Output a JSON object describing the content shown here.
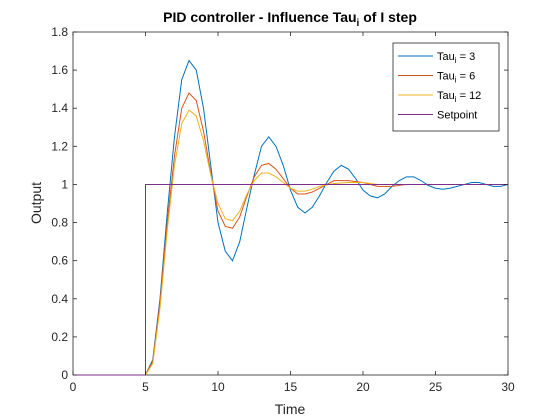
{
  "chart_data": {
    "type": "line",
    "title": "PID controller - Influence Tau",
    "title_subscript": "i",
    "title_suffix": " of I step",
    "xlabel": "Time",
    "ylabel": "Output",
    "xlim": [
      0,
      30
    ],
    "ylim": [
      0,
      1.8
    ],
    "xticks": [
      "0",
      "5",
      "10",
      "15",
      "20",
      "25",
      "30"
    ],
    "yticks": [
      "0",
      "0.2",
      "0.4",
      "0.6",
      "0.8",
      "1",
      "1.2",
      "1.4",
      "1.6",
      "1.8"
    ],
    "grid": false,
    "legend_position": "top-right",
    "series": [
      {
        "name_prefix": "Tau",
        "name_subscript": "i",
        "name_suffix": " = 3",
        "color": "#0072BD",
        "x": [
          0,
          5,
          5.5,
          6,
          6.5,
          7,
          7.5,
          8,
          8.5,
          9,
          9.5,
          10,
          10.5,
          11,
          11.5,
          12,
          12.5,
          13,
          13.5,
          14,
          14.5,
          15,
          15.5,
          16,
          16.5,
          17,
          17.5,
          18,
          18.5,
          19,
          19.5,
          20,
          20.5,
          21,
          21.5,
          22,
          22.5,
          23,
          23.5,
          24,
          24.5,
          25,
          25.5,
          26,
          26.5,
          27,
          27.5,
          28,
          28.5,
          29,
          29.5,
          30
        ],
        "y": [
          0,
          0,
          0.08,
          0.4,
          0.85,
          1.25,
          1.55,
          1.65,
          1.6,
          1.4,
          1.1,
          0.8,
          0.65,
          0.6,
          0.7,
          0.88,
          1.05,
          1.2,
          1.25,
          1.2,
          1.1,
          0.97,
          0.88,
          0.85,
          0.88,
          0.94,
          1.01,
          1.07,
          1.1,
          1.08,
          1.03,
          0.97,
          0.94,
          0.93,
          0.95,
          0.99,
          1.02,
          1.04,
          1.04,
          1.02,
          0.995,
          0.98,
          0.975,
          0.98,
          0.99,
          1.0,
          1.01,
          1.01,
          1.0,
          0.99,
          0.99,
          1.0
        ]
      },
      {
        "name_prefix": "Tau",
        "name_subscript": "i",
        "name_suffix": " = 6",
        "color": "#D95319",
        "x": [
          0,
          5,
          5.5,
          6,
          6.5,
          7,
          7.5,
          8,
          8.5,
          9,
          9.5,
          10,
          10.5,
          11,
          11.5,
          12,
          12.5,
          13,
          13.5,
          14,
          14.5,
          15,
          15.5,
          16,
          16.5,
          17,
          17.5,
          18,
          19,
          20,
          21,
          22,
          23,
          24,
          25,
          26,
          27,
          28,
          29,
          30
        ],
        "y": [
          0,
          0,
          0.07,
          0.38,
          0.8,
          1.15,
          1.4,
          1.48,
          1.44,
          1.28,
          1.06,
          0.86,
          0.78,
          0.77,
          0.83,
          0.94,
          1.04,
          1.1,
          1.11,
          1.08,
          1.03,
          0.98,
          0.95,
          0.95,
          0.96,
          0.98,
          1.0,
          1.02,
          1.02,
          1.01,
          0.99,
          0.99,
          1.0,
          1.0,
          1.0,
          1.0,
          1.0,
          1.0,
          1.0,
          1.0
        ]
      },
      {
        "name_prefix": "Tau",
        "name_subscript": "i",
        "name_suffix": " = 12",
        "color": "#EDB120",
        "x": [
          0,
          5,
          5.5,
          6,
          6.5,
          7,
          7.5,
          8,
          8.5,
          9,
          9.5,
          10,
          10.5,
          11,
          11.5,
          12,
          12.5,
          13,
          13.5,
          14,
          14.5,
          15,
          15.5,
          16,
          16.5,
          17,
          18,
          19,
          20,
          21,
          22,
          23,
          24,
          25,
          26,
          27,
          28,
          29,
          30
        ],
        "y": [
          0,
          0,
          0.06,
          0.35,
          0.76,
          1.1,
          1.32,
          1.39,
          1.36,
          1.23,
          1.05,
          0.9,
          0.82,
          0.81,
          0.86,
          0.95,
          1.02,
          1.06,
          1.06,
          1.04,
          1.01,
          0.98,
          0.965,
          0.965,
          0.975,
          0.99,
          1.005,
          1.01,
          1.01,
          1.0,
          1.0,
          1.0,
          1.0,
          1.0,
          1.0,
          1.0,
          1.0,
          1.0,
          1.0
        ]
      },
      {
        "name": "Setpoint",
        "color": "#7E2F8E",
        "x": [
          0,
          5,
          5,
          30
        ],
        "y": [
          0,
          0,
          1,
          1
        ]
      }
    ]
  }
}
